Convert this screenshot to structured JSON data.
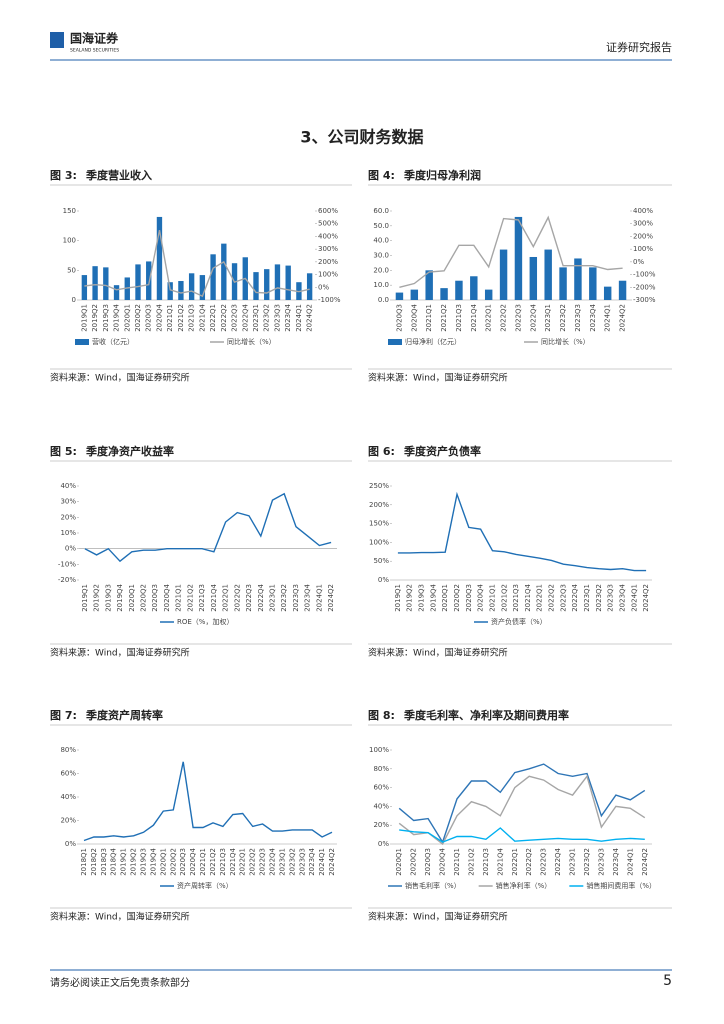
{
  "header": {
    "logo_cn": "国海证券",
    "logo_en": "SEALAND SECURITIES",
    "report_type": "证券研究报告"
  },
  "section_title": "3、公司财务数据",
  "figures": [
    {
      "label": "图 3:",
      "title": "季度营业收入",
      "source": "资料来源：Wind，国海证券研究所",
      "chart": {
        "type": "bar",
        "categories": [
          "2019Q1",
          "2019Q2",
          "2019Q3",
          "2019Q4",
          "2020Q1",
          "2020Q2",
          "2020Q3",
          "2020Q4",
          "2021Q1",
          "2021Q2",
          "2021Q3",
          "2021Q4",
          "2022Q1",
          "2022Q2",
          "2022Q3",
          "2022Q4",
          "2023Q1",
          "2023Q2",
          "2023Q3",
          "2023Q4",
          "2024Q1",
          "2024Q2"
        ],
        "series": [
          {
            "name": "营收（亿元）",
            "type": "bar",
            "color": "#1f6fb5",
            "values": [
              42,
              57,
              55,
              25,
              38,
              60,
              65,
              140,
              30,
              32,
              45,
              42,
              77,
              95,
              62,
              72,
              47,
              52,
              60,
              58,
              30,
              45
            ]
          },
          {
            "name": "同比增长（%）",
            "type": "line",
            "axis": "y2",
            "color": "#a6a6a6",
            "values": [
              10,
              20,
              15,
              -20,
              -5,
              5,
              20,
              450,
              -20,
              -45,
              -30,
              -70,
              150,
              200,
              40,
              70,
              -40,
              -45,
              -5,
              -20,
              -35,
              -15
            ]
          }
        ],
        "ylim": [
          0,
          150
        ],
        "yticks": [
          0,
          50,
          100,
          150
        ],
        "y2lim": [
          -100,
          600
        ],
        "y2ticks": [
          {
            "value": -100,
            "label": "-100%"
          },
          {
            "value": 0,
            "label": "0%"
          },
          {
            "value": 100,
            "label": "100%"
          },
          {
            "value": 200,
            "label": "200%"
          },
          {
            "value": 300,
            "label": "300%"
          },
          {
            "value": 400,
            "label": "400%"
          },
          {
            "value": 500,
            "label": "500%"
          },
          {
            "value": 600,
            "label": "600%"
          }
        ]
      }
    },
    {
      "label": "图 4:",
      "title": "季度归母净利润",
      "source": "资料来源：Wind，国海证券研究所",
      "chart": {
        "type": "bar",
        "categories": [
          "2020Q3",
          "2020Q4",
          "2021Q1",
          "2021Q2",
          "2021Q3",
          "2021Q4",
          "2022Q1",
          "2022Q2",
          "2022Q3",
          "2022Q4",
          "2023Q1",
          "2023Q2",
          "2023Q3",
          "2023Q4",
          "2024Q1",
          "2024Q2"
        ],
        "series": [
          {
            "name": "归母净利（亿元）",
            "type": "bar",
            "color": "#1f6fb5",
            "values": [
              5,
              7,
              20,
              8,
              13,
              16,
              7,
              34,
              56,
              29,
              34,
              22,
              28,
              22,
              9,
              13
            ]
          },
          {
            "name": "同比增长（%）",
            "type": "line",
            "axis": "y2",
            "color": "#a6a6a6",
            "values": [
              -200,
              -170,
              -80,
              -70,
              130,
              130,
              -40,
              340,
              330,
              120,
              350,
              -30,
              -30,
              -30,
              -60,
              -50
            ]
          }
        ],
        "ylim": [
          0,
          60
        ],
        "yticks": [
          {
            "value": 0,
            "label": "0.0"
          },
          {
            "value": 10,
            "label": "10.0"
          },
          {
            "value": 20,
            "label": "20.0"
          },
          {
            "value": 30,
            "label": "30.0"
          },
          {
            "value": 40,
            "label": "40.0"
          },
          {
            "value": 50,
            "label": "50.0"
          },
          {
            "value": 60,
            "label": "60.0"
          }
        ],
        "y2lim": [
          -300,
          400
        ],
        "y2ticks": [
          {
            "value": -300,
            "label": "-300%"
          },
          {
            "value": -200,
            "label": "-200%"
          },
          {
            "value": -100,
            "label": "-100%"
          },
          {
            "value": 0,
            "label": "0%"
          },
          {
            "value": 100,
            "label": "100%"
          },
          {
            "value": 200,
            "label": "200%"
          },
          {
            "value": 300,
            "label": "300%"
          },
          {
            "value": 400,
            "label": "400%"
          }
        ]
      }
    },
    {
      "label": "图 5:",
      "title": "季度净资产收益率",
      "source": "资料来源：Wind，国海证券研究所",
      "chart": {
        "type": "line",
        "categories": [
          "2019Q1",
          "2019Q2",
          "2019Q3",
          "2019Q4",
          "2020Q1",
          "2020Q2",
          "2020Q3",
          "2020Q4",
          "2021Q1",
          "2021Q2",
          "2021Q3",
          "2021Q4",
          "2022Q1",
          "2022Q2",
          "2022Q3",
          "2022Q4",
          "2023Q1",
          "2023Q2",
          "2023Q3",
          "2023Q4",
          "2024Q1",
          "2024Q2"
        ],
        "series": [
          {
            "name": "ROE（%，加权）",
            "color": "#1f6fb5",
            "values": [
              0,
              -4,
              0,
              -8,
              -2,
              -1,
              -1,
              0,
              0,
              0,
              0,
              -2,
              17,
              23,
              21,
              8,
              31,
              35,
              14,
              8,
              2,
              4
            ]
          }
        ],
        "ylim": [
          -20,
          40
        ],
        "yticks": [
          {
            "value": -20,
            "label": "-20%"
          },
          {
            "value": -10,
            "label": "-10%"
          },
          {
            "value": 0,
            "label": "0%"
          },
          {
            "value": 10,
            "label": "10%"
          },
          {
            "value": 20,
            "label": "20%"
          },
          {
            "value": 30,
            "label": "30%"
          },
          {
            "value": 40,
            "label": "40%"
          }
        ]
      }
    },
    {
      "label": "图 6:",
      "title": "季度资产负债率",
      "source": "资料来源：Wind，国海证券研究所",
      "chart": {
        "type": "line",
        "categories": [
          "2019Q1",
          "2019Q2",
          "2019Q3",
          "2019Q4",
          "2020Q1",
          "2020Q2",
          "2020Q3",
          "2020Q4",
          "2021Q1",
          "2021Q2",
          "2021Q3",
          "2021Q4",
          "2022Q1",
          "2022Q2",
          "2022Q3",
          "2022Q4",
          "2023Q1",
          "2023Q2",
          "2023Q3",
          "2023Q4",
          "2024Q1",
          "2024Q2"
        ],
        "series": [
          {
            "name": "资产负债率（%）",
            "color": "#1f6fb5",
            "values": [
              72,
              72,
              73,
              73,
              74,
              228,
              140,
              135,
              78,
              75,
              68,
              63,
              58,
              52,
              42,
              38,
              33,
              30,
              28,
              30,
              25,
              25
            ]
          }
        ],
        "ylim": [
          0,
          250
        ],
        "yticks": [
          {
            "value": 0,
            "label": "0%"
          },
          {
            "value": 50,
            "label": "50%"
          },
          {
            "value": 100,
            "label": "100%"
          },
          {
            "value": 150,
            "label": "150%"
          },
          {
            "value": 200,
            "label": "200%"
          },
          {
            "value": 250,
            "label": "250%"
          }
        ]
      }
    },
    {
      "label": "图 7:",
      "title": "季度资产周转率",
      "source": "资料来源：Wind，国海证券研究所",
      "chart": {
        "type": "line",
        "categories": [
          "2018Q1",
          "2018Q2",
          "2018Q3",
          "2018Q4",
          "2019Q1",
          "2019Q2",
          "2019Q3",
          "2019Q4",
          "2020Q1",
          "2020Q2",
          "2020Q3",
          "2020Q4",
          "2021Q1",
          "2021Q2",
          "2021Q3",
          "2021Q4",
          "2022Q1",
          "2022Q2",
          "2022Q3",
          "2022Q4",
          "2023Q1",
          "2023Q2",
          "2023Q3",
          "2023Q4",
          "2024Q1",
          "2024Q2"
        ],
        "series": [
          {
            "name": "资产周转率（%）",
            "color": "#1f6fb5",
            "values": [
              3,
              6,
              6,
              7,
              6,
              7,
              10,
              16,
              28,
              29,
              70,
              14,
              14,
              18,
              15,
              25,
              26,
              15,
              17,
              11,
              11,
              12,
              12,
              12,
              6,
              10
            ]
          }
        ],
        "ylim": [
          0,
          80
        ],
        "yticks": [
          {
            "value": 0,
            "label": "0%"
          },
          {
            "value": 20,
            "label": "20%"
          },
          {
            "value": 40,
            "label": "40%"
          },
          {
            "value": 60,
            "label": "60%"
          },
          {
            "value": 80,
            "label": "80%"
          }
        ]
      }
    },
    {
      "label": "图 8:",
      "title": "季度毛利率、净利率及期间费用率",
      "source": "资料来源：Wind，国海证券研究所",
      "chart": {
        "type": "line",
        "categories": [
          "2020Q1",
          "2020Q2",
          "2020Q3",
          "2020Q4",
          "2021Q1",
          "2021Q2",
          "2021Q3",
          "2021Q4",
          "2022Q1",
          "2022Q2",
          "2022Q3",
          "2022Q4",
          "2023Q1",
          "2023Q2",
          "2023Q3",
          "2023Q4",
          "2024Q1",
          "2024Q2"
        ],
        "series": [
          {
            "name": "销售毛利率（%）",
            "color": "#2e75b6",
            "values": [
              38,
              25,
              27,
              2,
              48,
              67,
              67,
              55,
              76,
              80,
              85,
              75,
              72,
              75,
              30,
              52,
              47,
              57
            ]
          },
          {
            "name": "销售净利率（%）",
            "color": "#a6a6a6",
            "values": [
              22,
              10,
              12,
              0,
              30,
              45,
              40,
              30,
              60,
              72,
              68,
              58,
              52,
              72,
              18,
              40,
              38,
              28
            ]
          },
          {
            "name": "销售期间费用率（%）",
            "color": "#00b0f0",
            "values": [
              15,
              13,
              12,
              2,
              8,
              8,
              5,
              17,
              3,
              4,
              5,
              6,
              5,
              5,
              3,
              5,
              6,
              5
            ]
          }
        ],
        "ylim": [
          0,
          100
        ],
        "yticks": [
          {
            "value": 0,
            "label": "0%"
          },
          {
            "value": 20,
            "label": "20%"
          },
          {
            "value": 40,
            "label": "40%"
          },
          {
            "value": 60,
            "label": "60%"
          },
          {
            "value": 80,
            "label": "80%"
          },
          {
            "value": 100,
            "label": "100%"
          }
        ]
      }
    }
  ],
  "footer": {
    "disclaimer": "请务必阅读正文后免责条款部分",
    "page": 5
  }
}
